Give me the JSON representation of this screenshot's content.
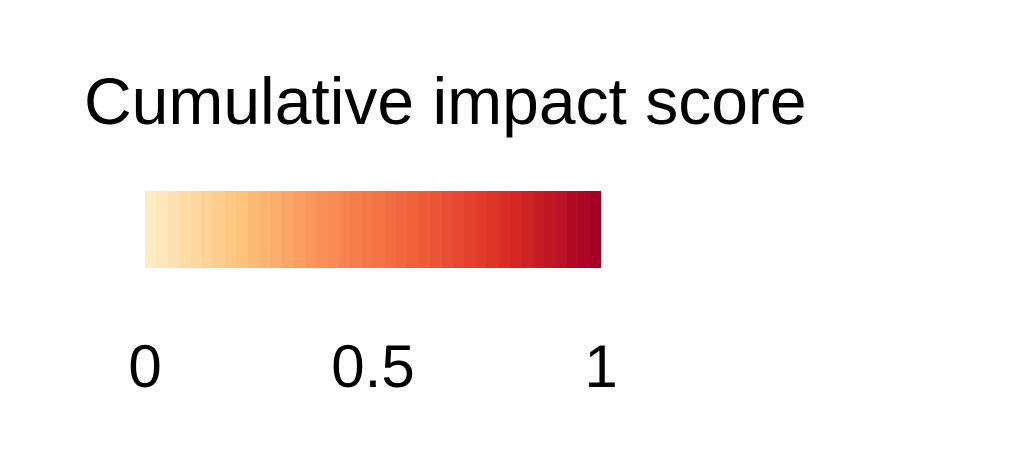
{
  "chart_data": {
    "type": "colorbar",
    "title": "Cumulative impact score",
    "range": [
      0,
      1
    ],
    "ticks": [
      {
        "value": 0,
        "label": "0"
      },
      {
        "value": 0.5,
        "label": "0.5"
      },
      {
        "value": 1,
        "label": "1"
      }
    ],
    "colormap": "YlOrRd",
    "color_stops": [
      "#fdebc4",
      "#fcc47c",
      "#f88c54",
      "#ef5f3a",
      "#d92c24",
      "#a50026"
    ],
    "steps": 40,
    "orientation": "horizontal"
  }
}
